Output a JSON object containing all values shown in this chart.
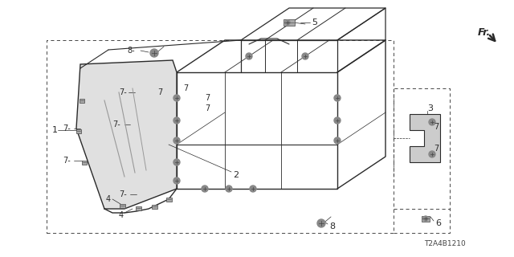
{
  "bg_color": "#ffffff",
  "line_color": "#2a2a2a",
  "diagram_id": "T2A4B1210",
  "fr_label": "Fr.",
  "title_fontsize": 7
}
